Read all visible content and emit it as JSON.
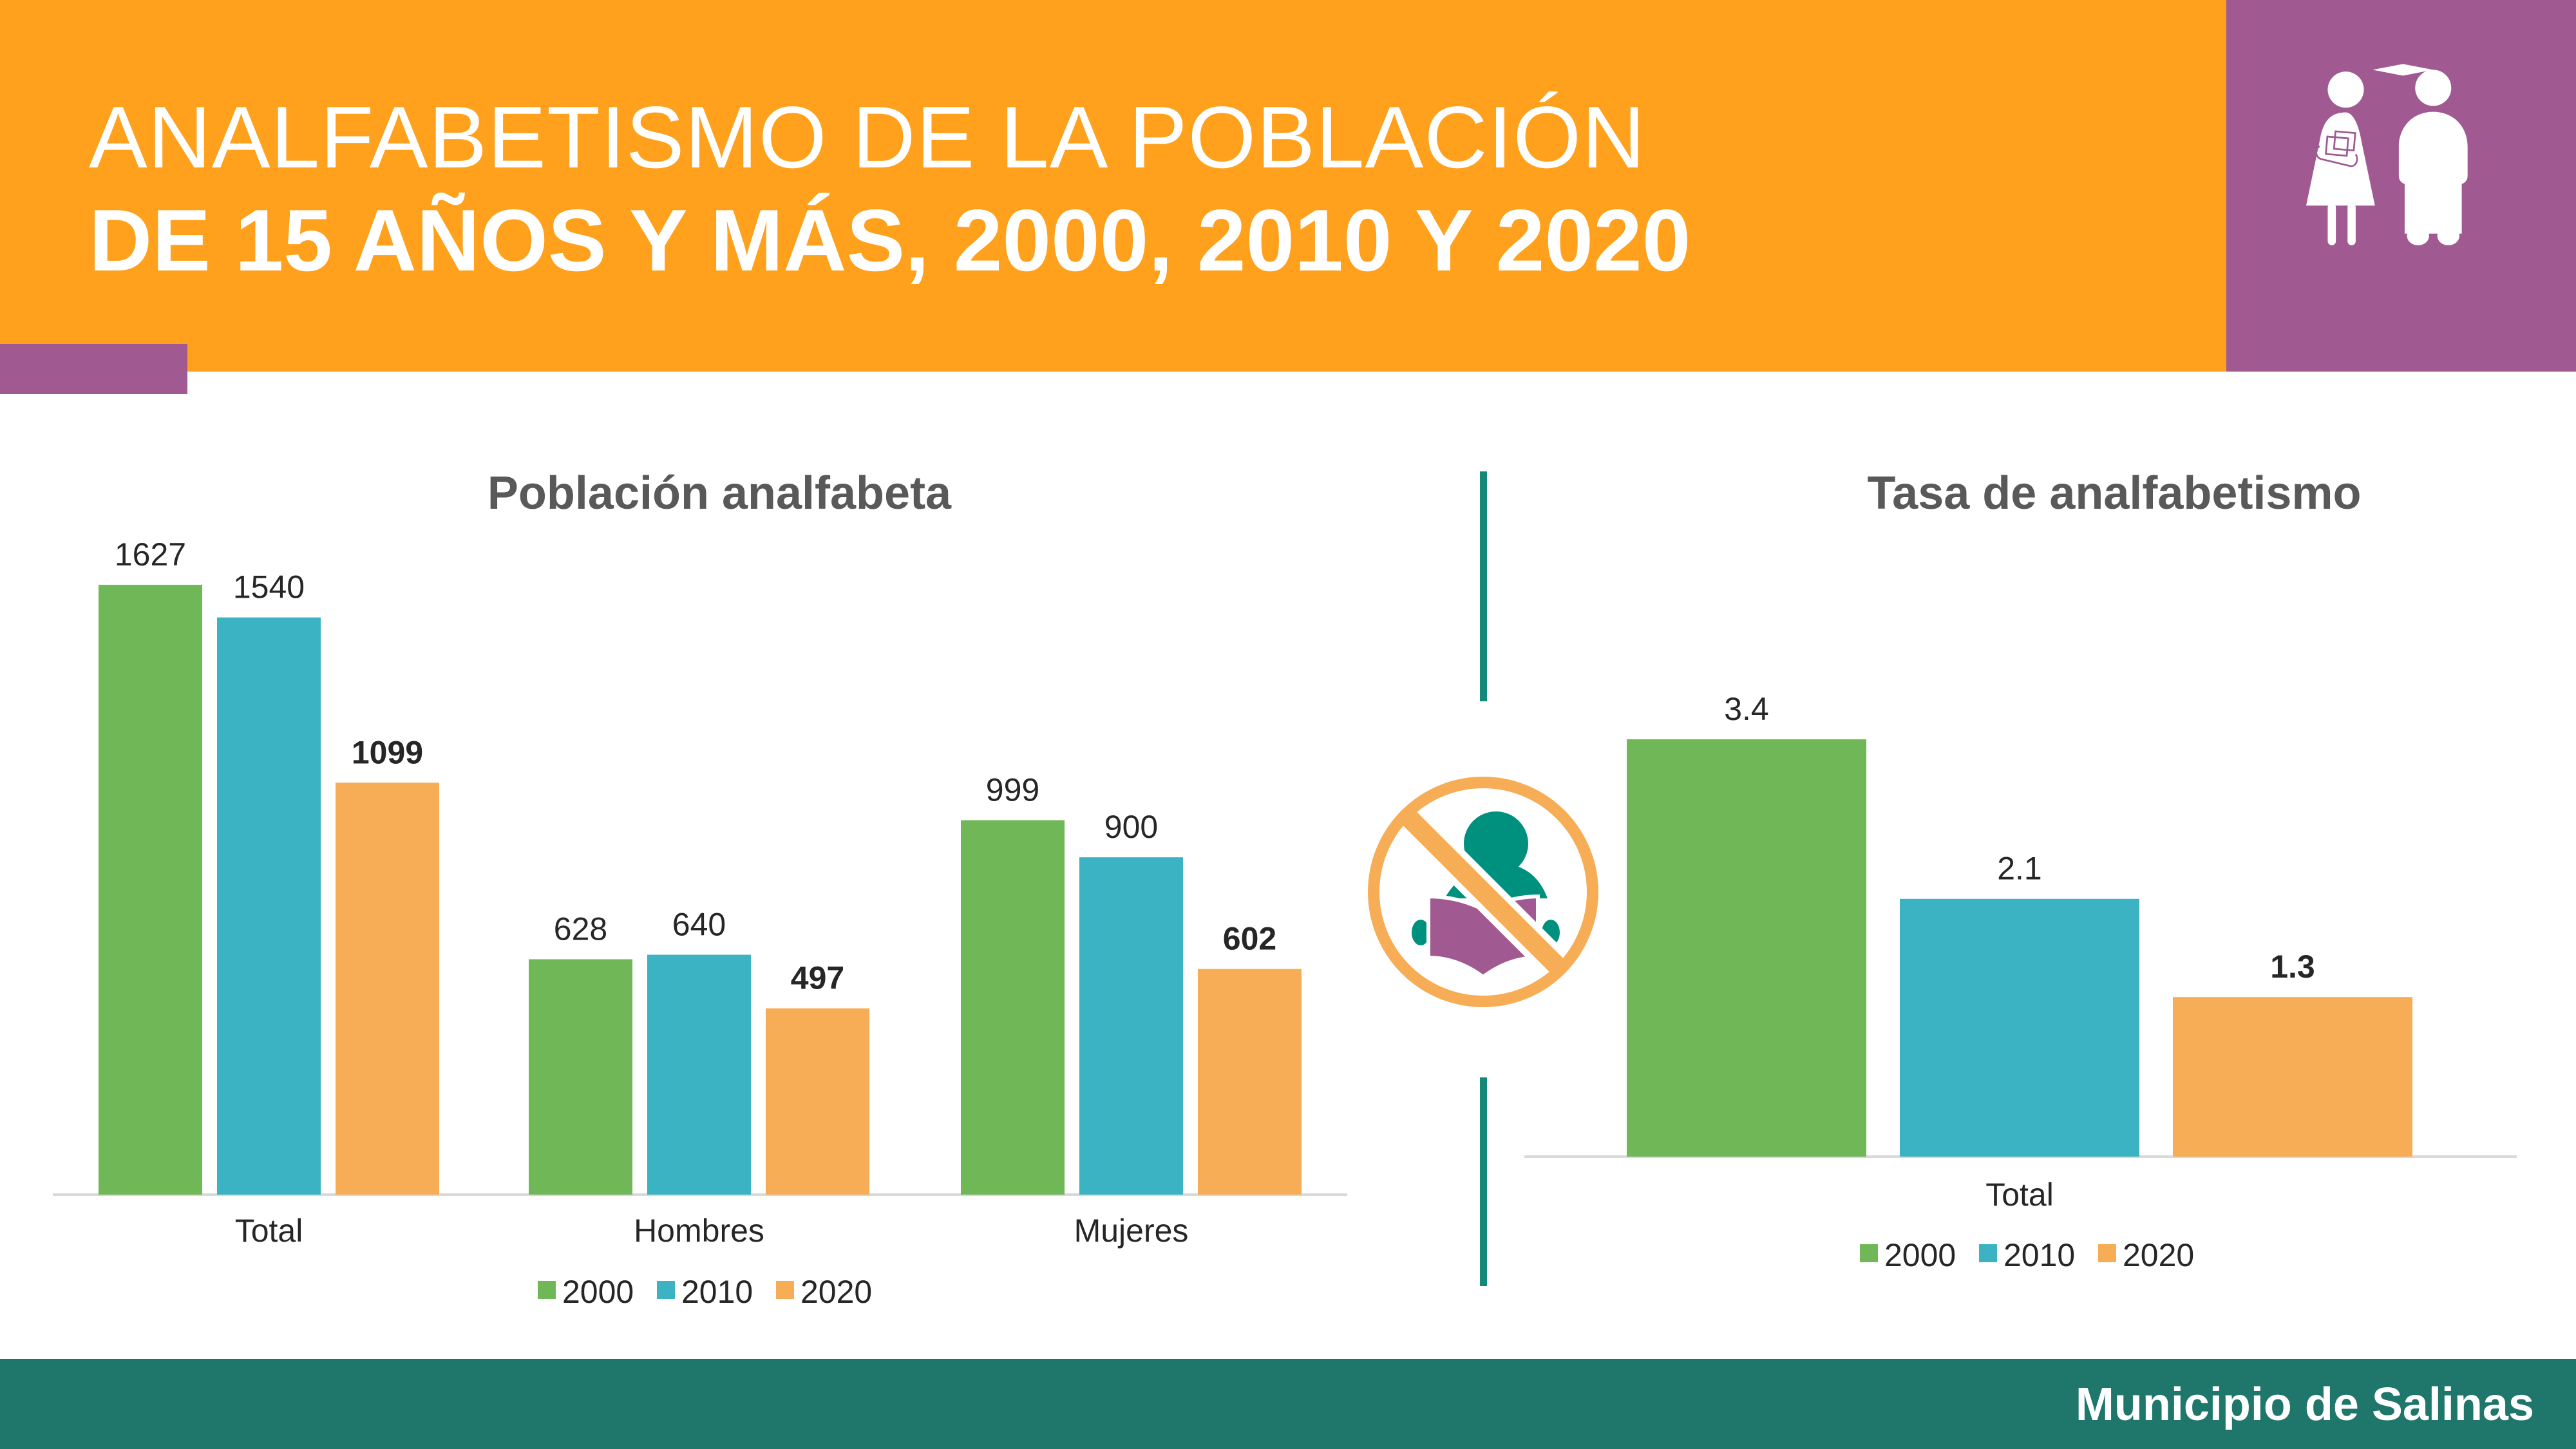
{
  "header": {
    "title_line1": "ANALFABETISMO DE LA POBLACIÓN",
    "title_line2": "DE 15 AÑOS Y MÁS, 2000, 2010 Y 2020",
    "icon": "student-and-graduate-icon"
  },
  "center_icon": "no-reading-icon",
  "footer": {
    "label": "Municipio de Salinas"
  },
  "colors": {
    "2000": "#70b857",
    "2010": "#3bb3c3",
    "2020": "#f7ac56",
    "header": "#ffa11c",
    "accent": "#a05a91",
    "footer": "#1f766b"
  },
  "chart_data": [
    {
      "type": "bar",
      "title": "Población analfabeta",
      "categories": [
        "Total",
        "Hombres",
        "Mujeres"
      ],
      "series": [
        {
          "name": "2000",
          "values": [
            1627,
            628,
            999
          ]
        },
        {
          "name": "2010",
          "values": [
            1540,
            640,
            900
          ]
        },
        {
          "name": "2020",
          "values": [
            1099,
            497,
            602
          ]
        }
      ],
      "legend": "bottom",
      "grid": false
    },
    {
      "type": "bar",
      "title": "Tasa de analfabetismo",
      "categories": [
        "Total"
      ],
      "series": [
        {
          "name": "2000",
          "values": [
            3.4
          ]
        },
        {
          "name": "2010",
          "values": [
            2.1
          ]
        },
        {
          "name": "2020",
          "values": [
            1.3
          ]
        }
      ],
      "legend": "bottom",
      "grid": false
    }
  ]
}
